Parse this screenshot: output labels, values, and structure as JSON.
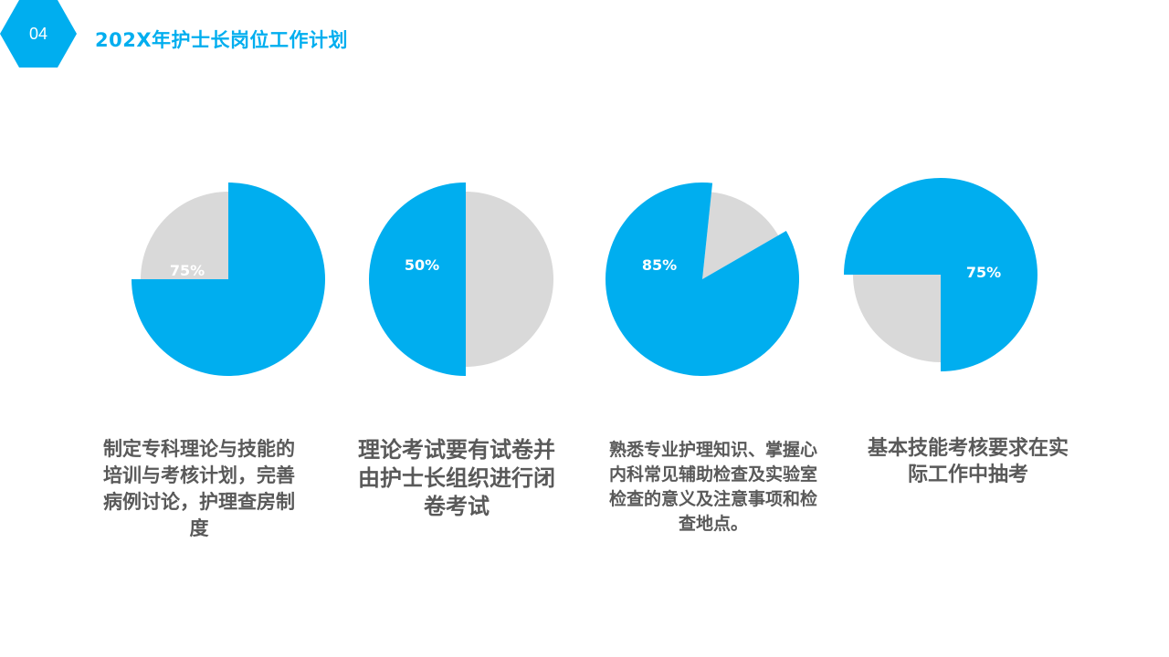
{
  "header": {
    "slide_number": "04",
    "title": "202X年护士长岗位工作计划"
  },
  "colors": {
    "accent": "#00aeef",
    "remainder": "#d9d9d9",
    "caption_text": "#595959"
  },
  "chart_data": [
    {
      "type": "pie",
      "values": [
        75,
        25
      ],
      "data_label": "75%",
      "caption": "制定专科理论与技能的\n培训与考核计划，完善\n病例讨论，护理查房制\n度"
    },
    {
      "type": "pie",
      "values": [
        50,
        50
      ],
      "data_label": "50%",
      "caption": "理论考试要有试卷并\n由护士长组织进行闭\n卷考试"
    },
    {
      "type": "pie",
      "values": [
        85,
        15
      ],
      "data_label": "85%",
      "caption": "熟悉专业护理知识、掌握心\n内科常见辅助检查及实验室\n检查的意义及注意事项和检\n查地点。"
    },
    {
      "type": "pie",
      "values": [
        75,
        25
      ],
      "data_label": "75%",
      "caption": "基本技能考核要求在实\n际工作中抽考"
    }
  ]
}
